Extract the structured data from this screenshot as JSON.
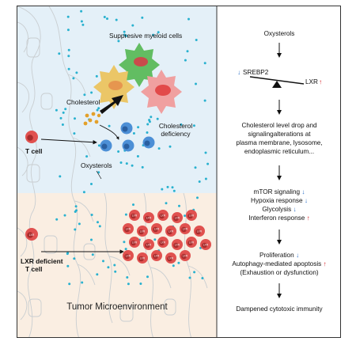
{
  "tumor": {
    "myeloid_label": "Suppresive myeloid cells",
    "cholesterol_label": "Cholesterol",
    "deficiency_label_1": "Cholesterol",
    "deficiency_label_2": "deficiency",
    "t_cell_label": "T cell",
    "oxysterols_label": "Oxysterols",
    "lxr_cell_label_1": "LXR deficient",
    "lxr_cell_label_2": "T cell",
    "cell_mark": "LXR",
    "environment_label": "Tumor Microenvironment"
  },
  "pathway": {
    "top": "Oxysterols",
    "srebp2": "SREBP2",
    "lxr": "LXR",
    "cholesterol_lines": [
      "Cholesterol level drop and",
      "signalingalterations at",
      "plasma membrane, lysosome,",
      "endoplasmic reticulum..."
    ],
    "signal_lines": [
      "mTOR signaling",
      "Hypoxia response",
      "Glycolysis",
      "Interferon response"
    ],
    "proliferation": "Proliferation",
    "apoptosis": "Autophagy-mediated apoptosis",
    "exhaustion": "(Exhaustion or dysfunction)",
    "final": "Dampened cytotoxic immunity",
    "down_arrow": "↓",
    "up_arrow": "↑"
  },
  "colors": {
    "upper_bg": "#e4f0f8",
    "lower_bg": "#faeee2",
    "dot": "#29b1cf",
    "t_cell": "#e0514f",
    "blue_cell": "#4c8fd6",
    "myeloid_green": "#62bd62",
    "myeloid_yellow": "#ebc667",
    "cholesterol": "#e3a02a",
    "up": "#d6242a",
    "down": "#2268c4"
  }
}
